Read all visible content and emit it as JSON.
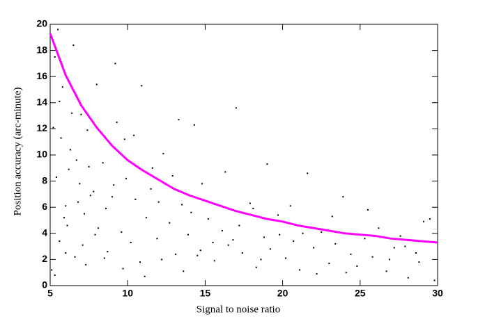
{
  "chart_data": {
    "type": "scatter",
    "xlabel": "Signal to noise ratio",
    "ylabel": "Position accuracy (arc-minute)",
    "xlim": [
      5,
      30
    ],
    "xticks": [
      5,
      10,
      15,
      20,
      25,
      30
    ],
    "ylim": [
      0,
      20
    ],
    "yticks": [
      0,
      2,
      4,
      6,
      8,
      10,
      12,
      14,
      16,
      18,
      20
    ],
    "series": [
      {
        "style": "points",
        "color": "#000000",
        "x": [
          5.2,
          5.4,
          5.6,
          5.8,
          6.0,
          6.3,
          6.6,
          6.9,
          7.2,
          7.5,
          5.1,
          5.3,
          5.7,
          6.1,
          6.4,
          6.8,
          7.1,
          7.4,
          7.8,
          8.1,
          8.4,
          8.7,
          9.0,
          9.3,
          9.6,
          9.9,
          10.2,
          10.5,
          10.8,
          11.2,
          11.5,
          11.9,
          12.3,
          12.7,
          13.1,
          13.5,
          13.9,
          14.3,
          14.7,
          15.2,
          15.6,
          16.1,
          16.5,
          17.0,
          17.4,
          17.9,
          18.3,
          18.8,
          19.2,
          19.7,
          20.2,
          20.7,
          21.1,
          21.6,
          22.0,
          22.5,
          23.0,
          23.4,
          23.9,
          24.4,
          24.8,
          25.3,
          25.8,
          26.2,
          26.7,
          27.2,
          27.6,
          28.1,
          28.6,
          29.1,
          5.5,
          5.9,
          6.2,
          6.5,
          7.0,
          7.6,
          8.0,
          8.6,
          9.2,
          9.8,
          5.3,
          5.6,
          6.0,
          6.7,
          7.3,
          7.9,
          8.5,
          9.1,
          9.7,
          10.4,
          10.9,
          11.6,
          12.2,
          12.9,
          13.6,
          14.1,
          14.8,
          15.5,
          16.3,
          17.2,
          18.1,
          19.0,
          19.8,
          20.5,
          21.3,
          22.2,
          23.2,
          24.1,
          25.5,
          26.9,
          27.9,
          28.8,
          29.5,
          29.8,
          13.3,
          14.5,
          16.8,
          18.6,
          12.0,
          11.1
        ],
        "values": [
          12.1,
          8.3,
          3.4,
          15.2,
          6.1,
          10.4,
          2.2,
          7.8,
          5.5,
          9.1,
          1.2,
          17.5,
          11.3,
          4.6,
          13.2,
          6.4,
          3.1,
          11.9,
          7.2,
          4.4,
          9.4,
          2.6,
          6.8,
          12.5,
          4.1,
          8.2,
          3.3,
          6.6,
          1.8,
          5.2,
          7.4,
          3.6,
          10.1,
          4.8,
          2.4,
          6.2,
          3.9,
          12.3,
          2.7,
          5.1,
          1.9,
          4.2,
          3.1,
          13.6,
          2.5,
          6.3,
          1.4,
          3.7,
          2.8,
          5.4,
          2.1,
          3.4,
          1.2,
          8.6,
          2.9,
          4.1,
          1.7,
          3.2,
          6.8,
          2.4,
          1.5,
          3.6,
          2.2,
          4.4,
          1.1,
          2.9,
          3.8,
          0.6,
          2.5,
          4.9,
          19.6,
          5.2,
          8.9,
          18.4,
          13.1,
          6.9,
          15.4,
          5.9,
          17.0,
          11.2,
          0.8,
          14.1,
          2.5,
          9.6,
          1.6,
          3.9,
          2.1,
          7.7,
          1.3,
          11.5,
          15.3,
          9.0,
          2.0,
          8.4,
          1.1,
          5.6,
          7.8,
          3.3,
          8.7,
          4.6,
          5.9,
          9.3,
          3.9,
          6.1,
          4.0,
          0.9,
          5.3,
          1.0,
          5.8,
          2.0,
          3.0,
          1.8,
          5.1,
          0.4,
          12.7,
          2.3,
          3.5,
          2.0,
          6.4,
          0.7
        ]
      },
      {
        "style": "line",
        "color": "#ff00ff",
        "x": [
          5,
          6,
          7,
          8,
          9,
          10,
          11,
          12,
          13,
          14,
          15,
          16,
          17,
          18,
          19,
          20,
          21,
          22,
          23,
          24,
          25,
          26,
          27,
          28,
          29,
          30
        ],
        "values": [
          19.3,
          16.1,
          13.8,
          12.1,
          10.7,
          9.6,
          8.8,
          8.1,
          7.4,
          6.9,
          6.5,
          6.1,
          5.7,
          5.4,
          5.1,
          4.9,
          4.6,
          4.4,
          4.2,
          4.0,
          3.9,
          3.8,
          3.6,
          3.5,
          3.4,
          3.3
        ]
      }
    ]
  }
}
